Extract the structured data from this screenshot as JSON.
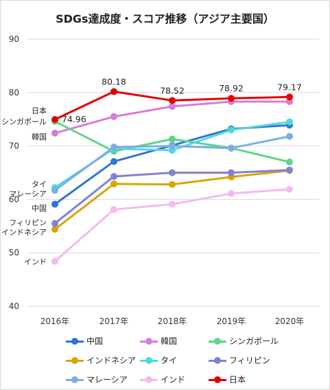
{
  "chart_data": {
    "type": "line",
    "title": "SDGs達成度・スコア推移（アジア主要国）",
    "categories": [
      "2016年",
      "2017年",
      "2018年",
      "2019年",
      "2020年"
    ],
    "ylim": [
      40,
      90
    ],
    "yticks": [
      40,
      50,
      60,
      70,
      80,
      90
    ],
    "grid": true,
    "legend_position": "bottom",
    "series": [
      {
        "name": "中国",
        "color": "#2e75d6",
        "values": [
          59.1,
          67.1,
          70.1,
          73.2,
          73.9
        ]
      },
      {
        "name": "韓国",
        "color": "#d97ad9",
        "values": [
          72.4,
          75.5,
          77.4,
          78.3,
          78.3
        ]
      },
      {
        "name": "シンガポール",
        "color": "#5cd68a",
        "values": [
          74.6,
          69.0,
          71.3,
          69.6,
          67.0
        ]
      },
      {
        "name": "インドネシア",
        "color": "#d9a400",
        "values": [
          54.4,
          62.9,
          62.8,
          64.2,
          65.4
        ]
      },
      {
        "name": "タイ",
        "color": "#4fd9d9",
        "values": [
          62.2,
          69.5,
          69.2,
          73.0,
          74.5
        ]
      },
      {
        "name": "フィリピン",
        "color": "#8080d9",
        "values": [
          55.5,
          64.3,
          65.0,
          65.0,
          65.5
        ]
      },
      {
        "name": "マレーシア",
        "color": "#7aaee8",
        "values": [
          61.7,
          69.8,
          70.0,
          69.6,
          71.8
        ]
      },
      {
        "name": "インド",
        "color": "#f7b8f0",
        "values": [
          48.4,
          58.1,
          59.1,
          61.1,
          61.9
        ]
      },
      {
        "name": "日本",
        "color": "#e60000",
        "values": [
          74.96,
          80.18,
          78.52,
          78.92,
          79.17
        ]
      }
    ],
    "data_labels": {
      "series": "日本",
      "labels": [
        "74.96",
        "80.18",
        "78.52",
        "78.92",
        "79.17"
      ]
    },
    "left_labels": [
      {
        "text": "日本",
        "series": "日本"
      },
      {
        "text": "シンガポール",
        "series": "シンガポール"
      },
      {
        "text": "韓国",
        "series": "韓国"
      },
      {
        "text": "タイ",
        "series": "タイ"
      },
      {
        "text": "マレーシア",
        "series": "マレーシア"
      },
      {
        "text": "中国",
        "series": "中国"
      },
      {
        "text": "フィリピン",
        "series": "フィリピン"
      },
      {
        "text": "インドネシア",
        "series": "インドネシア"
      },
      {
        "text": "インド",
        "series": "インド"
      }
    ]
  }
}
